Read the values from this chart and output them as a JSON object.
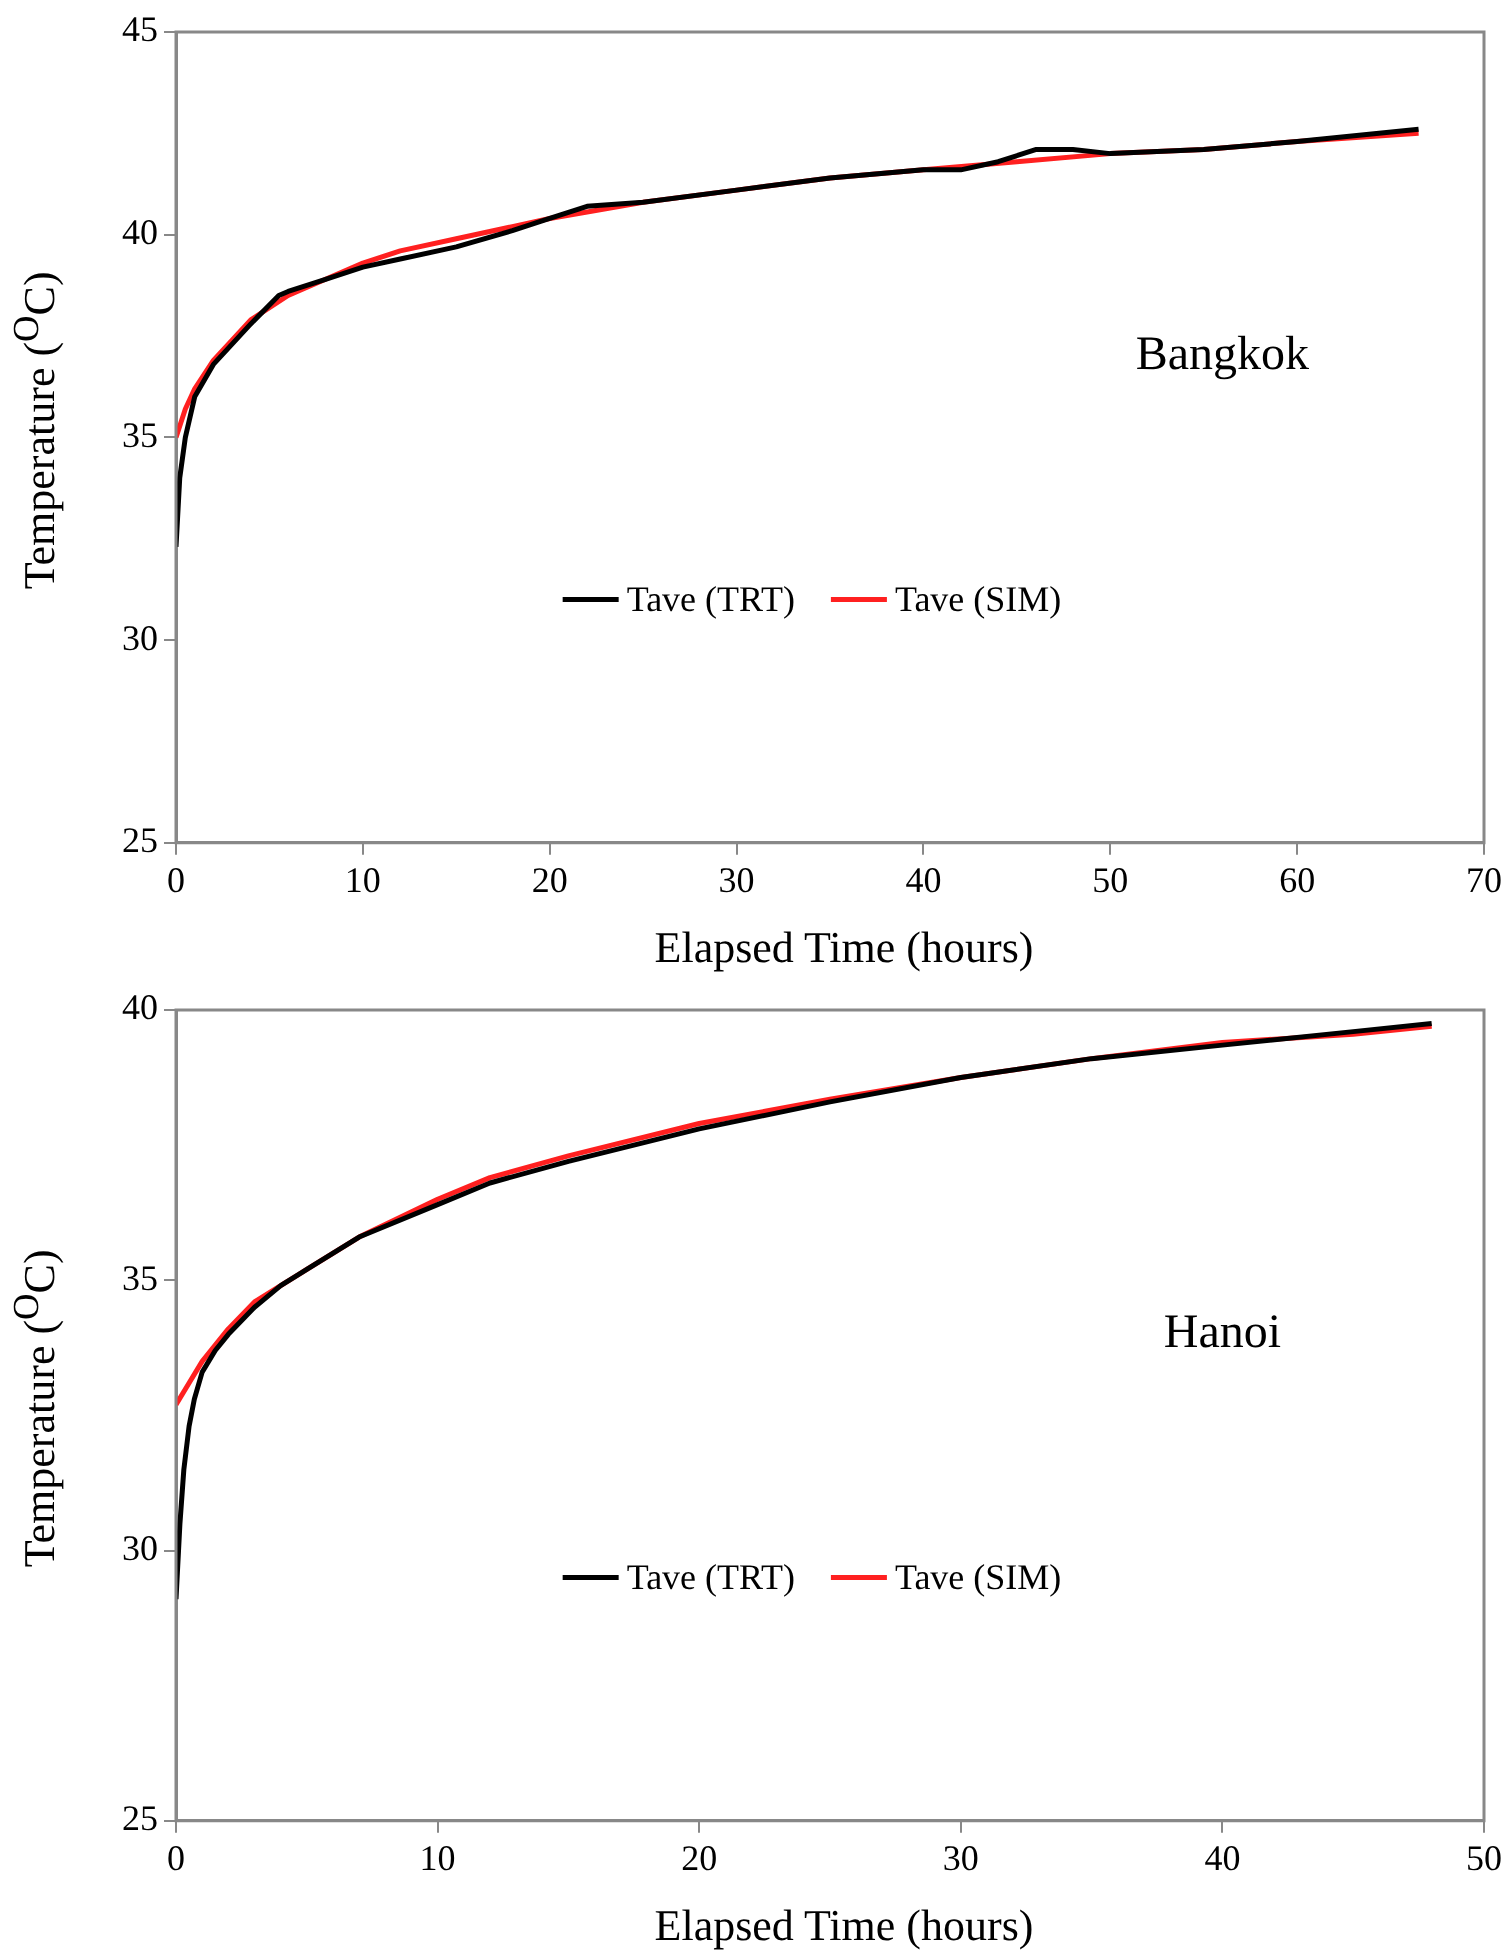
{
  "chart_data": [
    {
      "type": "line",
      "xlabel": "Elapsed Time (hours)",
      "ylabel": "Temperature ($^{O}$C)",
      "xlim": [
        0,
        70
      ],
      "xticks": [
        0,
        10,
        20,
        30,
        40,
        50,
        60,
        70
      ],
      "ylim": [
        25,
        45
      ],
      "yticks": [
        25,
        30,
        35,
        40,
        45
      ],
      "grid": false,
      "legend": "bottom",
      "marker": "none",
      "line_style": "solid",
      "annotations": [
        "Bangkok"
      ],
      "series": [
        {
          "name": "Tave (TRT)",
          "color": "#000000",
          "x": [
            0,
            0.2,
            0.5,
            1,
            2,
            3,
            4,
            5.5,
            6,
            8,
            10,
            12,
            15,
            18,
            20,
            22,
            25,
            30,
            35,
            40,
            42,
            44,
            46,
            48,
            50,
            55,
            60,
            66.5
          ],
          "values": [
            32.3,
            34,
            35,
            36,
            36.8,
            37.3,
            37.8,
            38.5,
            38.6,
            38.9,
            39.2,
            39.4,
            39.7,
            40.1,
            40.4,
            40.7,
            40.8,
            41.1,
            41.4,
            41.6,
            41.6,
            41.8,
            42.1,
            42.1,
            42,
            42.1,
            42.3,
            42.6
          ]
        },
        {
          "name": "Tave (SIM)",
          "color": "#ff2020",
          "x": [
            0,
            0.5,
            1,
            2,
            3,
            4,
            6,
            8,
            10,
            12,
            15,
            18,
            20,
            25,
            30,
            35,
            40,
            45,
            50,
            55,
            60,
            66.5
          ],
          "values": [
            35,
            35.7,
            36.2,
            36.9,
            37.4,
            37.9,
            38.5,
            38.9,
            39.3,
            39.6,
            39.9,
            40.2,
            40.4,
            40.8,
            41.1,
            41.4,
            41.6,
            41.8,
            42,
            42.1,
            42.3,
            42.5
          ]
        }
      ]
    },
    {
      "type": "line",
      "xlabel": "Elapsed Time (hours)",
      "ylabel": "Temperature ($^{O}$C)",
      "xlim": [
        0,
        50
      ],
      "xticks": [
        0,
        10,
        20,
        30,
        40,
        50
      ],
      "ylim": [
        25,
        40
      ],
      "yticks": [
        25,
        30,
        35,
        40
      ],
      "grid": false,
      "legend": "bottom",
      "marker": "none",
      "line_style": "solid",
      "annotations": [
        "Hanoi"
      ],
      "series": [
        {
          "name": "Tave (TRT)",
          "color": "#000000",
          "x": [
            0,
            0.15,
            0.3,
            0.5,
            0.7,
            1,
            1.5,
            2,
            3,
            4,
            5,
            7,
            10,
            12,
            15,
            20,
            25,
            30,
            35,
            40,
            45,
            48
          ],
          "values": [
            29.1,
            30.5,
            31.5,
            32.3,
            32.8,
            33.3,
            33.7,
            34,
            34.5,
            34.9,
            35.2,
            35.8,
            36.4,
            36.8,
            37.2,
            37.8,
            38.3,
            38.75,
            39.1,
            39.35,
            39.6,
            39.75
          ]
        },
        {
          "name": "Tave (SIM)",
          "color": "#ff2020",
          "x": [
            0,
            0.5,
            1,
            2,
            3,
            4,
            5,
            7,
            10,
            12,
            15,
            20,
            25,
            30,
            35,
            40,
            45,
            48
          ],
          "values": [
            32.7,
            33.1,
            33.5,
            34.1,
            34.6,
            34.9,
            35.2,
            35.8,
            36.5,
            36.9,
            37.3,
            37.9,
            38.35,
            38.75,
            39.1,
            39.4,
            39.55,
            39.7
          ]
        }
      ]
    }
  ]
}
